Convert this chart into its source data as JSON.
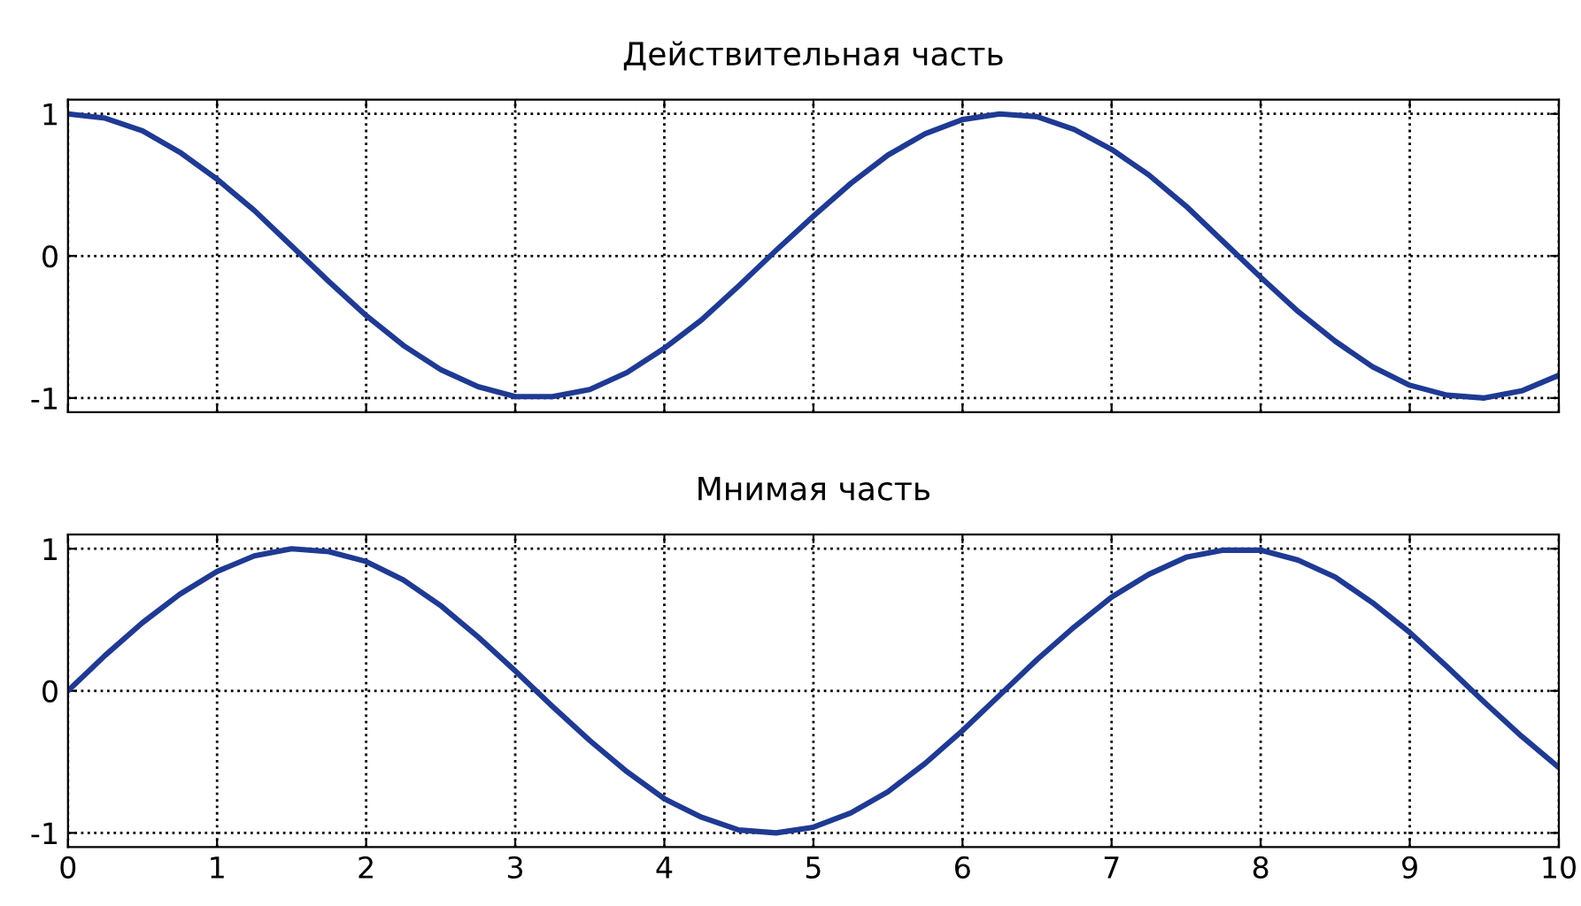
{
  "chart_data": [
    {
      "type": "line",
      "title": "Действительная часть",
      "x": [
        0,
        0.25,
        0.5,
        0.75,
        1,
        1.25,
        1.5,
        1.75,
        2,
        2.25,
        2.5,
        2.75,
        3,
        3.25,
        3.5,
        3.75,
        4,
        4.25,
        4.5,
        4.75,
        5,
        5.25,
        5.5,
        5.75,
        6,
        6.25,
        6.5,
        6.75,
        7,
        7.25,
        7.5,
        7.75,
        8,
        8.25,
        8.5,
        8.75,
        9,
        9.25,
        9.5,
        9.75,
        10
      ],
      "series": [
        {
          "color": "#1f3a93",
          "values": [
            1,
            0.97,
            0.88,
            0.73,
            0.54,
            0.32,
            0.07,
            -0.18,
            -0.42,
            -0.63,
            -0.8,
            -0.92,
            -0.99,
            -0.99,
            -0.94,
            -0.82,
            -0.65,
            -0.45,
            -0.21,
            0.04,
            0.28,
            0.51,
            0.71,
            0.86,
            0.96,
            1,
            0.98,
            0.89,
            0.75,
            0.57,
            0.35,
            0.1,
            -0.15,
            -0.39,
            -0.6,
            -0.78,
            -0.91,
            -0.98,
            -1,
            -0.95,
            -0.84
          ]
        }
      ],
      "xlim": [
        0,
        10
      ],
      "ylim": [
        -1.1,
        1.1
      ],
      "xticks": [
        0,
        1,
        2,
        3,
        4,
        5,
        6,
        7,
        8,
        9,
        10
      ],
      "yticks": [
        -1,
        0,
        1
      ],
      "grid": true,
      "line_style": "solid",
      "tick_labels": "y"
    },
    {
      "type": "line",
      "title": "Мнимая часть",
      "x": [
        0,
        0.25,
        0.5,
        0.75,
        1,
        1.25,
        1.5,
        1.75,
        2,
        2.25,
        2.5,
        2.75,
        3,
        3.25,
        3.5,
        3.75,
        4,
        4.25,
        4.5,
        4.75,
        5,
        5.25,
        5.5,
        5.75,
        6,
        6.25,
        6.5,
        6.75,
        7,
        7.25,
        7.5,
        7.75,
        8,
        8.25,
        8.5,
        8.75,
        9,
        9.25,
        9.5,
        9.75,
        10
      ],
      "series": [
        {
          "color": "#1f3a93",
          "values": [
            0,
            0.25,
            0.48,
            0.68,
            0.84,
            0.95,
            1,
            0.98,
            0.91,
            0.78,
            0.6,
            0.38,
            0.14,
            -0.11,
            -0.35,
            -0.57,
            -0.76,
            -0.89,
            -0.98,
            -1,
            -0.96,
            -0.86,
            -0.71,
            -0.51,
            -0.28,
            -0.03,
            0.22,
            0.45,
            0.66,
            0.82,
            0.94,
            0.99,
            0.99,
            0.92,
            0.8,
            0.62,
            0.41,
            0.17,
            -0.08,
            -0.32,
            -0.54
          ]
        }
      ],
      "xlim": [
        0,
        10
      ],
      "ylim": [
        -1.1,
        1.1
      ],
      "xticks": [
        0,
        1,
        2,
        3,
        4,
        5,
        6,
        7,
        8,
        9,
        10
      ],
      "yticks": [
        -1,
        0,
        1
      ],
      "grid": true,
      "line_style": "solid"
    }
  ]
}
